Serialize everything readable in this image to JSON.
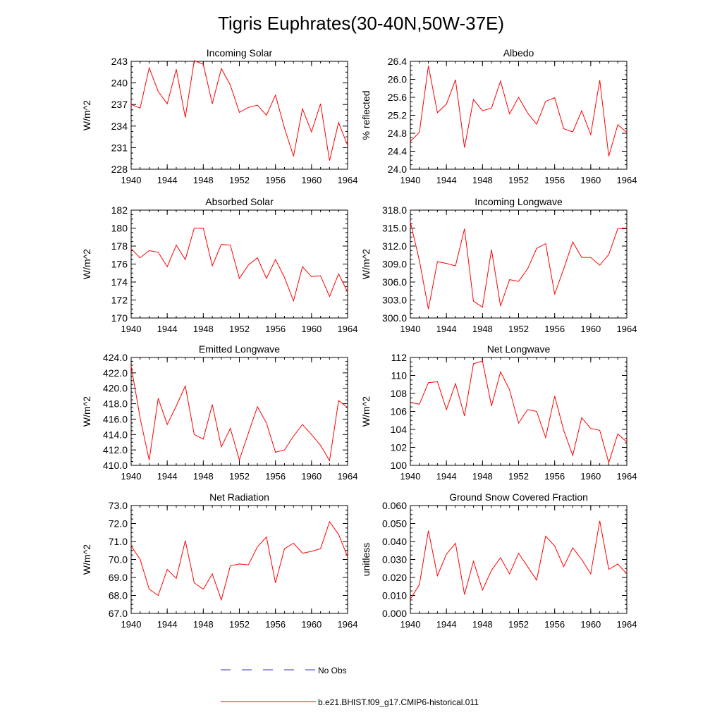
{
  "title": "Tigris Euphrates(30-40N,50W-37E)",
  "colors": {
    "model": "#ff0000",
    "obs": "#3333cc",
    "axis": "#000000"
  },
  "legend": {
    "obs_label": "No Obs",
    "model_label": "b.e21.BHIST.f09_g17.CMIP6-historical.011"
  },
  "chart_data": [
    {
      "type": "line",
      "title": "Incoming Solar",
      "ylabel": "W/m^2",
      "xlim": [
        1940,
        1964
      ],
      "ylim": [
        228,
        243
      ],
      "xticks": [
        1940,
        1944,
        1948,
        1952,
        1956,
        1960,
        1964
      ],
      "yticks": [
        228,
        231,
        234,
        237,
        240,
        243
      ],
      "ytick_labels": [
        "228",
        "231",
        "234",
        "237",
        "240",
        "243"
      ],
      "grid": false,
      "series": [
        {
          "name": "b.e21.BHIST.f09_g17.CMIP6-historical.011",
          "x": [
            1940,
            1941,
            1942,
            1943,
            1944,
            1945,
            1946,
            1947,
            1948,
            1949,
            1950,
            1951,
            1952,
            1953,
            1954,
            1955,
            1956,
            1957,
            1958,
            1959,
            1960,
            1961,
            1962,
            1963,
            1964
          ],
          "y": [
            237.0,
            236.5,
            242.1,
            238.8,
            237.1,
            241.9,
            235.2,
            243.1,
            242.6,
            237.1,
            242.0,
            239.7,
            235.9,
            236.6,
            236.9,
            235.5,
            238.3,
            233.7,
            229.8,
            236.4,
            233.2,
            237.1,
            229.2,
            234.5,
            231.3
          ]
        }
      ]
    },
    {
      "type": "line",
      "title": "Albedo",
      "ylabel": "% reflected",
      "xlim": [
        1940,
        1964
      ],
      "ylim": [
        24.0,
        26.4
      ],
      "xticks": [
        1940,
        1944,
        1948,
        1952,
        1956,
        1960,
        1964
      ],
      "yticks": [
        24.0,
        24.4,
        24.8,
        25.2,
        25.6,
        26.0,
        26.4
      ],
      "ytick_labels": [
        "24.0",
        "24.4",
        "24.8",
        "25.2",
        "25.6",
        "26.0",
        "26.4"
      ],
      "grid": false,
      "series": [
        {
          "name": "b.e21.BHIST.f09_g17.CMIP6-historical.011",
          "x": [
            1940,
            1941,
            1942,
            1943,
            1944,
            1945,
            1946,
            1947,
            1948,
            1949,
            1950,
            1951,
            1952,
            1953,
            1954,
            1955,
            1956,
            1957,
            1958,
            1959,
            1960,
            1961,
            1962,
            1963,
            1964
          ],
          "y": [
            24.62,
            24.82,
            26.3,
            25.26,
            25.45,
            25.99,
            24.48,
            25.55,
            25.3,
            25.36,
            25.96,
            25.23,
            25.6,
            25.25,
            25.0,
            25.51,
            25.59,
            24.9,
            24.83,
            25.3,
            24.77,
            25.98,
            24.29,
            24.99,
            24.82
          ]
        }
      ]
    },
    {
      "type": "line",
      "title": "Absorbed Solar",
      "ylabel": "W/m^2",
      "xlim": [
        1940,
        1964
      ],
      "ylim": [
        170,
        182
      ],
      "xticks": [
        1940,
        1944,
        1948,
        1952,
        1956,
        1960,
        1964
      ],
      "yticks": [
        170,
        172,
        174,
        176,
        178,
        180,
        182
      ],
      "ytick_labels": [
        "170",
        "172",
        "174",
        "176",
        "178",
        "180",
        "182"
      ],
      "grid": false,
      "series": [
        {
          "name": "b.e21.BHIST.f09_g17.CMIP6-historical.011",
          "x": [
            1940,
            1941,
            1942,
            1943,
            1944,
            1945,
            1946,
            1947,
            1948,
            1949,
            1950,
            1951,
            1952,
            1953,
            1954,
            1955,
            1956,
            1957,
            1958,
            1959,
            1960,
            1961,
            1962,
            1963,
            1964
          ],
          "y": [
            177.7,
            176.7,
            177.5,
            177.3,
            175.7,
            178.1,
            176.5,
            180.0,
            180.0,
            175.8,
            178.2,
            178.1,
            174.4,
            175.9,
            176.7,
            174.4,
            176.5,
            174.5,
            171.9,
            175.7,
            174.6,
            174.7,
            172.4,
            174.9,
            172.9
          ]
        }
      ]
    },
    {
      "type": "line",
      "title": "Incoming Longwave",
      "ylabel": "W/m^2",
      "xlim": [
        1940,
        1964
      ],
      "ylim": [
        300.0,
        318.0
      ],
      "xticks": [
        1940,
        1944,
        1948,
        1952,
        1956,
        1960,
        1964
      ],
      "yticks": [
        300,
        303,
        306,
        309,
        312,
        315,
        318
      ],
      "ytick_labels": [
        "300.0",
        "303.0",
        "306.0",
        "309.0",
        "312.0",
        "315.0",
        "318.0"
      ],
      "grid": false,
      "series": [
        {
          "name": "b.e21.BHIST.f09_g17.CMIP6-historical.011",
          "x": [
            1940,
            1941,
            1942,
            1943,
            1944,
            1945,
            1946,
            1947,
            1948,
            1949,
            1950,
            1951,
            1952,
            1953,
            1954,
            1955,
            1956,
            1957,
            1958,
            1959,
            1960,
            1961,
            1962,
            1963,
            1964
          ],
          "y": [
            316.0,
            309.6,
            301.5,
            309.4,
            309.1,
            308.7,
            314.9,
            302.8,
            301.8,
            311.4,
            302.0,
            306.4,
            306.1,
            308.2,
            311.6,
            312.4,
            304.0,
            308.2,
            312.7,
            310.1,
            310.1,
            308.8,
            310.6,
            314.9,
            314.9
          ]
        }
      ]
    },
    {
      "type": "line",
      "title": "Emitted Longwave",
      "ylabel": "W/m^2",
      "xlim": [
        1940,
        1964
      ],
      "ylim": [
        410.0,
        424.0
      ],
      "xticks": [
        1940,
        1944,
        1948,
        1952,
        1956,
        1960,
        1964
      ],
      "yticks": [
        410,
        412,
        414,
        416,
        418,
        420,
        422,
        424
      ],
      "ytick_labels": [
        "410.0",
        "412.0",
        "414.0",
        "416.0",
        "418.0",
        "420.0",
        "422.0",
        "424.0"
      ],
      "grid": false,
      "series": [
        {
          "name": "b.e21.BHIST.f09_g17.CMIP6-historical.011",
          "x": [
            1940,
            1941,
            1942,
            1943,
            1944,
            1945,
            1946,
            1947,
            1948,
            1949,
            1950,
            1951,
            1952,
            1953,
            1954,
            1955,
            1956,
            1957,
            1958,
            1959,
            1960,
            1961,
            1962,
            1963,
            1964
          ],
          "y": [
            422.9,
            416.1,
            410.7,
            418.7,
            415.3,
            417.7,
            420.3,
            414.0,
            413.4,
            417.9,
            412.4,
            414.8,
            410.7,
            414.2,
            417.6,
            415.5,
            411.7,
            412.0,
            413.8,
            415.3,
            414.0,
            412.6,
            410.6,
            418.4,
            417.5
          ]
        }
      ]
    },
    {
      "type": "line",
      "title": "Net Longwave",
      "ylabel": "W/m^2",
      "xlim": [
        1940,
        1964
      ],
      "ylim": [
        100,
        112
      ],
      "xticks": [
        1940,
        1944,
        1948,
        1952,
        1956,
        1960,
        1964
      ],
      "yticks": [
        100,
        102,
        104,
        106,
        108,
        110,
        112
      ],
      "ytick_labels": [
        "100",
        "102",
        "104",
        "106",
        "108",
        "110",
        "112"
      ],
      "grid": false,
      "series": [
        {
          "name": "b.e21.BHIST.f09_g17.CMIP6-historical.011",
          "x": [
            1940,
            1941,
            1942,
            1943,
            1944,
            1945,
            1946,
            1947,
            1948,
            1949,
            1950,
            1951,
            1952,
            1953,
            1954,
            1955,
            1956,
            1957,
            1958,
            1959,
            1960,
            1961,
            1962,
            1963,
            1964
          ],
          "y": [
            107.0,
            106.8,
            109.2,
            109.3,
            106.2,
            109.1,
            105.5,
            111.3,
            111.6,
            106.6,
            110.4,
            108.4,
            104.7,
            106.2,
            106.0,
            103.1,
            107.7,
            103.9,
            101.1,
            105.3,
            104.1,
            103.9,
            100.3,
            103.5,
            102.6
          ]
        }
      ]
    },
    {
      "type": "line",
      "title": "Net Radiation",
      "ylabel": "W/m^2",
      "xlim": [
        1940,
        1964
      ],
      "ylim": [
        67.0,
        73.0
      ],
      "xticks": [
        1940,
        1944,
        1948,
        1952,
        1956,
        1960,
        1964
      ],
      "yticks": [
        67,
        68,
        69,
        70,
        71,
        72,
        73
      ],
      "ytick_labels": [
        "67.0",
        "68.0",
        "69.0",
        "70.0",
        "71.0",
        "72.0",
        "73.0"
      ],
      "grid": false,
      "series": [
        {
          "name": "b.e21.BHIST.f09_g17.CMIP6-historical.011",
          "x": [
            1940,
            1941,
            1942,
            1943,
            1944,
            1945,
            1946,
            1947,
            1948,
            1949,
            1950,
            1951,
            1952,
            1953,
            1954,
            1955,
            1956,
            1957,
            1958,
            1959,
            1960,
            1961,
            1962,
            1963,
            1964
          ],
          "y": [
            70.75,
            70.0,
            68.35,
            68.0,
            69.45,
            68.95,
            71.05,
            68.7,
            68.35,
            69.2,
            67.75,
            69.65,
            69.75,
            69.7,
            70.7,
            71.25,
            68.7,
            70.6,
            70.9,
            70.35,
            70.45,
            70.6,
            72.1,
            71.4,
            70.15
          ]
        }
      ]
    },
    {
      "type": "line",
      "title": "Ground Snow Covered Fraction",
      "ylabel": "unitless",
      "xlim": [
        1940,
        1964
      ],
      "ylim": [
        0.0,
        0.06
      ],
      "xticks": [
        1940,
        1944,
        1948,
        1952,
        1956,
        1960,
        1964
      ],
      "yticks": [
        0.0,
        0.01,
        0.02,
        0.03,
        0.04,
        0.05,
        0.06
      ],
      "ytick_labels": [
        "0.000",
        "0.010",
        "0.020",
        "0.030",
        "0.040",
        "0.050",
        "0.060"
      ],
      "grid": false,
      "series": [
        {
          "name": "b.e21.BHIST.f09_g17.CMIP6-historical.011",
          "x": [
            1940,
            1941,
            1942,
            1943,
            1944,
            1945,
            1946,
            1947,
            1948,
            1949,
            1950,
            1951,
            1952,
            1953,
            1954,
            1955,
            1956,
            1957,
            1958,
            1959,
            1960,
            1961,
            1962,
            1963,
            1964
          ],
          "y": [
            0.008,
            0.016,
            0.046,
            0.021,
            0.033,
            0.039,
            0.0105,
            0.029,
            0.013,
            0.024,
            0.031,
            0.022,
            0.0335,
            0.026,
            0.0185,
            0.043,
            0.0375,
            0.026,
            0.0365,
            0.03,
            0.022,
            0.0515,
            0.0245,
            0.0275,
            0.022
          ]
        }
      ]
    }
  ]
}
